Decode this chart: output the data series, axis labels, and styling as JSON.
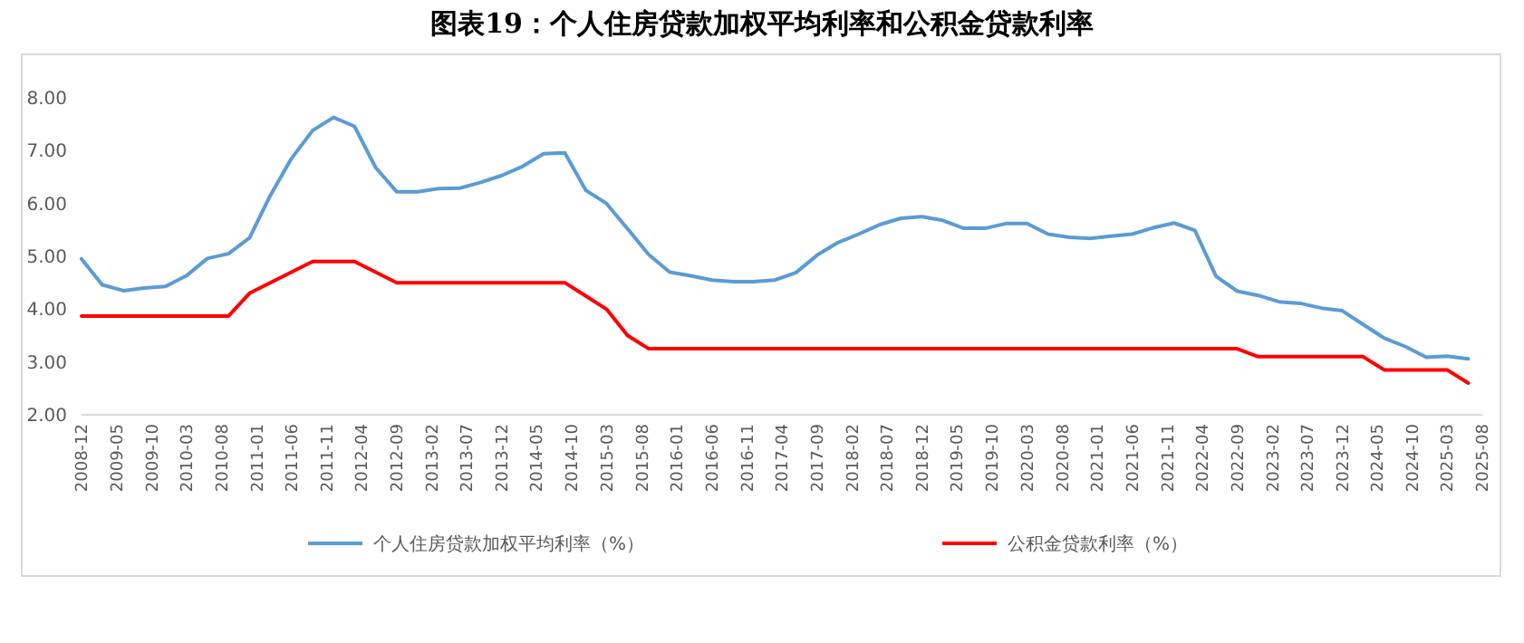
{
  "chart_data": {
    "type": "line",
    "title": "图表19：个人住房贷款加权平均利率和公积金贷款利率",
    "x": [
      "2008-12",
      "2009-03",
      "2009-06",
      "2009-09",
      "2009-12",
      "2010-03",
      "2010-06",
      "2010-09",
      "2010-12",
      "2011-03",
      "2011-06",
      "2011-09",
      "2011-12",
      "2012-03",
      "2012-06",
      "2012-09",
      "2012-12",
      "2013-03",
      "2013-06",
      "2013-09",
      "2013-12",
      "2014-03",
      "2014-06",
      "2014-09",
      "2014-12",
      "2015-03",
      "2015-06",
      "2015-09",
      "2015-12",
      "2016-03",
      "2016-06",
      "2016-09",
      "2016-12",
      "2017-03",
      "2017-06",
      "2017-09",
      "2017-12",
      "2018-03",
      "2018-06",
      "2018-09",
      "2018-12",
      "2019-03",
      "2019-06",
      "2019-09",
      "2019-12",
      "2020-03",
      "2020-06",
      "2020-09",
      "2020-12",
      "2021-03",
      "2021-06",
      "2021-09",
      "2021-12",
      "2022-03",
      "2022-06",
      "2022-09",
      "2022-12",
      "2023-03",
      "2023-06",
      "2023-09",
      "2023-12",
      "2024-03",
      "2024-06",
      "2024-09",
      "2024-12",
      "2025-03",
      "2025-06"
    ],
    "series": [
      {
        "name": "个人住房贷款加权平均利率（%）",
        "color": "#5b9bd5",
        "values": [
          4.95,
          4.46,
          4.35,
          4.4,
          4.43,
          4.63,
          4.96,
          5.05,
          5.35,
          6.15,
          6.85,
          7.38,
          7.63,
          7.46,
          6.68,
          6.22,
          6.22,
          6.28,
          6.29,
          6.4,
          6.53,
          6.7,
          6.94,
          6.96,
          6.25,
          6.0,
          5.52,
          5.03,
          4.7,
          4.63,
          4.55,
          4.52,
          4.52,
          4.55,
          4.69,
          5.02,
          5.26,
          5.42,
          5.6,
          5.72,
          5.75,
          5.68,
          5.53,
          5.53,
          5.62,
          5.62,
          5.42,
          5.36,
          5.34,
          5.38,
          5.42,
          5.54,
          5.63,
          5.49,
          4.62,
          4.34,
          4.26,
          4.14,
          4.11,
          4.02,
          3.97,
          3.71,
          3.45,
          3.29,
          3.09,
          3.11,
          3.06
        ]
      },
      {
        "name": "公积金贷款利率（%）",
        "color": "#ff0000",
        "values": [
          3.87,
          3.87,
          3.87,
          3.87,
          3.87,
          3.87,
          3.87,
          3.87,
          4.3,
          4.5,
          4.7,
          4.9,
          4.9,
          4.9,
          4.7,
          4.5,
          4.5,
          4.5,
          4.5,
          4.5,
          4.5,
          4.5,
          4.5,
          4.5,
          4.25,
          4.0,
          3.5,
          3.25,
          3.25,
          3.25,
          3.25,
          3.25,
          3.25,
          3.25,
          3.25,
          3.25,
          3.25,
          3.25,
          3.25,
          3.25,
          3.25,
          3.25,
          3.25,
          3.25,
          3.25,
          3.25,
          3.25,
          3.25,
          3.25,
          3.25,
          3.25,
          3.25,
          3.25,
          3.25,
          3.25,
          3.25,
          3.1,
          3.1,
          3.1,
          3.1,
          3.1,
          3.1,
          2.85,
          2.85,
          2.85,
          2.85,
          2.6
        ]
      }
    ],
    "xlim": [
      "2008-12",
      "2025-08"
    ],
    "xticks": [
      "2008-12",
      "2009-05",
      "2009-10",
      "2010-03",
      "2010-08",
      "2011-01",
      "2011-06",
      "2011-11",
      "2012-04",
      "2012-09",
      "2013-02",
      "2013-07",
      "2013-12",
      "2014-05",
      "2014-10",
      "2015-03",
      "2015-08",
      "2016-01",
      "2016-06",
      "2016-11",
      "2017-04",
      "2017-09",
      "2018-02",
      "2018-07",
      "2018-12",
      "2019-05",
      "2019-10",
      "2020-03",
      "2020-08",
      "2021-01",
      "2021-06",
      "2021-11",
      "2022-04",
      "2022-09",
      "2023-02",
      "2023-07",
      "2023-12",
      "2024-05",
      "2024-10",
      "2025-03",
      "2025-08"
    ],
    "ylim": [
      2,
      8
    ],
    "yticks": [
      {
        "value": 2,
        "label": "2.00"
      },
      {
        "value": 3,
        "label": "3.00"
      },
      {
        "value": 4,
        "label": "4.00"
      },
      {
        "value": 5,
        "label": "5.00"
      },
      {
        "value": 6,
        "label": "6.00"
      },
      {
        "value": 7,
        "label": "7.00"
      },
      {
        "value": 8,
        "label": "8.00"
      }
    ],
    "legend": "bottom",
    "marker": "none",
    "line_style": "solid"
  }
}
